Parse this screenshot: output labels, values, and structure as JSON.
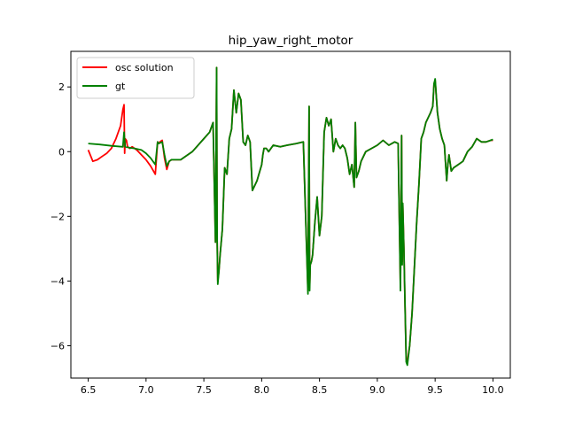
{
  "chart_data": {
    "type": "line",
    "title": "hip_yaw_right_motor",
    "xlabel": "",
    "ylabel": "",
    "xlim": [
      6.35,
      10.15
    ],
    "ylim": [
      -7.0,
      3.1
    ],
    "xticks": [
      6.5,
      7.0,
      7.5,
      8.0,
      8.5,
      9.0,
      9.5,
      10.0
    ],
    "xtick_labels": [
      "6.5",
      "7.0",
      "7.5",
      "8.0",
      "8.5",
      "9.0",
      "9.5",
      "10.0"
    ],
    "yticks": [
      -6,
      -4,
      -2,
      0,
      2
    ],
    "ytick_labels": [
      "−6",
      "−4",
      "−2",
      "0",
      "2"
    ],
    "grid": false,
    "legend_position": "top-left",
    "series": [
      {
        "name": "osc solution",
        "color": "#ff0000",
        "x": [
          6.5,
          6.54,
          6.58,
          6.62,
          6.66,
          6.7,
          6.74,
          6.78,
          6.8,
          6.81,
          6.815,
          6.82,
          6.83,
          6.84,
          6.86,
          6.88,
          6.92,
          6.96,
          7.0,
          7.04,
          7.08,
          7.1,
          7.11,
          7.12,
          7.14,
          7.16,
          7.18,
          7.2,
          7.22,
          7.3,
          7.4,
          7.5,
          7.55,
          7.58,
          7.6,
          7.61,
          7.615,
          7.62,
          7.63,
          7.64,
          7.66,
          7.68,
          7.7,
          7.72,
          7.74,
          7.76,
          7.78,
          7.8,
          7.82,
          7.84,
          7.86,
          7.88,
          7.9,
          7.92,
          7.96,
          8.0,
          8.01,
          8.02,
          8.04,
          8.06,
          8.1,
          8.16,
          8.22,
          8.3,
          8.36,
          8.4,
          8.41,
          8.415,
          8.42,
          8.43,
          8.44,
          8.46,
          8.48,
          8.5,
          8.52,
          8.54,
          8.56,
          8.58,
          8.6,
          8.62,
          8.64,
          8.66,
          8.68,
          8.7,
          8.72,
          8.74,
          8.76,
          8.78,
          8.8,
          8.81,
          8.82,
          8.84,
          8.86,
          8.9,
          8.95,
          9.0,
          9.05,
          9.1,
          9.15,
          9.18,
          9.2,
          9.21,
          9.215,
          9.22,
          9.23,
          9.24,
          9.25,
          9.26,
          9.28,
          9.3,
          9.32,
          9.34,
          9.36,
          9.38,
          9.4,
          9.42,
          9.44,
          9.46,
          9.48,
          9.49,
          9.5,
          9.51,
          9.52,
          9.54,
          9.56,
          9.58,
          9.6,
          9.61,
          9.62,
          9.64,
          9.66,
          9.7,
          9.74,
          9.78,
          9.82,
          9.86,
          9.9,
          9.94,
          9.98,
          10.0
        ],
        "y": [
          0.05,
          -0.3,
          -0.25,
          -0.15,
          -0.05,
          0.1,
          0.4,
          0.8,
          1.3,
          1.45,
          -0.05,
          0.4,
          0.35,
          0.15,
          0.1,
          0.15,
          0.05,
          -0.1,
          -0.25,
          -0.45,
          -0.7,
          0.3,
          0.25,
          0.3,
          0.35,
          -0.2,
          -0.55,
          -0.3,
          -0.25,
          -0.25,
          0.0,
          0.4,
          0.6,
          0.9,
          -2.8,
          2.6,
          -2.7,
          -4.0,
          -3.7,
          -3.2,
          -2.4,
          -0.5,
          -0.7,
          0.4,
          0.7,
          1.9,
          1.2,
          1.8,
          1.6,
          0.3,
          0.2,
          0.5,
          0.3,
          -1.2,
          -0.9,
          -0.4,
          -0.1,
          0.1,
          0.1,
          0.0,
          0.2,
          0.15,
          0.2,
          0.25,
          0.3,
          -4.3,
          1.4,
          -4.2,
          -3.5,
          -3.4,
          -3.2,
          -2.2,
          -1.4,
          -2.6,
          -2.0,
          0.6,
          1.05,
          0.8,
          1.0,
          0.0,
          0.4,
          0.2,
          0.1,
          0.2,
          0.1,
          -0.2,
          -0.7,
          -0.4,
          -1.1,
          0.9,
          -0.8,
          -0.6,
          -0.3,
          0.0,
          0.1,
          0.2,
          0.35,
          0.2,
          0.3,
          0.25,
          -4.2,
          0.5,
          -3.4,
          -1.6,
          -3.0,
          -4.8,
          -6.4,
          -6.5,
          -6.0,
          -5.0,
          -3.6,
          -2.2,
          -1.0,
          0.4,
          0.6,
          0.9,
          1.05,
          1.2,
          1.4,
          2.1,
          2.2,
          1.7,
          1.2,
          0.7,
          0.4,
          0.2,
          -0.9,
          -0.4,
          -0.1,
          -0.6,
          -0.5,
          -0.4,
          -0.3,
          0.0,
          0.15,
          0.4,
          0.3,
          0.3,
          0.35,
          0.35
        ]
      },
      {
        "name": "gt",
        "color": "#008000",
        "x": [
          6.5,
          6.6,
          6.7,
          6.8,
          6.81,
          6.82,
          6.86,
          6.9,
          6.96,
          7.0,
          7.04,
          7.08,
          7.1,
          7.11,
          7.14,
          7.16,
          7.18,
          7.2,
          7.22,
          7.3,
          7.4,
          7.5,
          7.55,
          7.58,
          7.6,
          7.61,
          7.615,
          7.62,
          7.63,
          7.64,
          7.66,
          7.68,
          7.7,
          7.72,
          7.74,
          7.76,
          7.78,
          7.8,
          7.82,
          7.84,
          7.86,
          7.88,
          7.9,
          7.92,
          7.96,
          8.0,
          8.01,
          8.02,
          8.04,
          8.06,
          8.1,
          8.16,
          8.22,
          8.3,
          8.36,
          8.4,
          8.41,
          8.415,
          8.42,
          8.43,
          8.44,
          8.46,
          8.48,
          8.5,
          8.52,
          8.54,
          8.56,
          8.58,
          8.6,
          8.62,
          8.64,
          8.66,
          8.68,
          8.7,
          8.72,
          8.74,
          8.76,
          8.78,
          8.8,
          8.81,
          8.82,
          8.84,
          8.86,
          8.9,
          8.95,
          9.0,
          9.05,
          9.1,
          9.15,
          9.18,
          9.2,
          9.21,
          9.215,
          9.22,
          9.23,
          9.24,
          9.25,
          9.26,
          9.28,
          9.3,
          9.32,
          9.34,
          9.36,
          9.38,
          9.4,
          9.42,
          9.44,
          9.46,
          9.48,
          9.49,
          9.5,
          9.51,
          9.52,
          9.54,
          9.56,
          9.58,
          9.6,
          9.61,
          9.62,
          9.64,
          9.66,
          9.7,
          9.74,
          9.78,
          9.82,
          9.86,
          9.9,
          9.94,
          9.98,
          10.0
        ],
        "y": [
          0.25,
          0.22,
          0.18,
          0.15,
          0.6,
          0.15,
          0.12,
          0.1,
          0.05,
          -0.05,
          -0.2,
          -0.4,
          0.3,
          0.25,
          0.3,
          -0.1,
          -0.45,
          -0.3,
          -0.25,
          -0.25,
          0.0,
          0.4,
          0.6,
          0.9,
          -2.8,
          2.6,
          -2.7,
          -4.1,
          -3.7,
          -3.2,
          -2.4,
          -0.5,
          -0.7,
          0.4,
          0.7,
          1.9,
          1.2,
          1.8,
          1.6,
          0.3,
          0.2,
          0.5,
          0.3,
          -1.2,
          -0.9,
          -0.4,
          -0.1,
          0.1,
          0.1,
          0.0,
          0.2,
          0.15,
          0.2,
          0.25,
          0.3,
          -4.4,
          1.4,
          -4.3,
          -3.5,
          -3.4,
          -3.2,
          -2.2,
          -1.4,
          -2.6,
          -2.0,
          0.6,
          1.05,
          0.8,
          1.0,
          0.0,
          0.4,
          0.2,
          0.1,
          0.2,
          0.1,
          -0.2,
          -0.7,
          -0.4,
          -1.1,
          0.9,
          -0.8,
          -0.6,
          -0.3,
          0.0,
          0.1,
          0.2,
          0.35,
          0.2,
          0.3,
          0.25,
          -4.3,
          0.5,
          -3.5,
          -1.6,
          -3.0,
          -4.8,
          -6.5,
          -6.6,
          -6.0,
          -5.0,
          -3.6,
          -2.2,
          -1.0,
          0.4,
          0.6,
          0.9,
          1.05,
          1.2,
          1.4,
          2.1,
          2.25,
          1.7,
          1.2,
          0.7,
          0.4,
          0.2,
          -0.9,
          -0.4,
          -0.1,
          -0.6,
          -0.5,
          -0.4,
          -0.3,
          0.0,
          0.15,
          0.4,
          0.3,
          0.3,
          0.35,
          0.38
        ]
      }
    ]
  }
}
